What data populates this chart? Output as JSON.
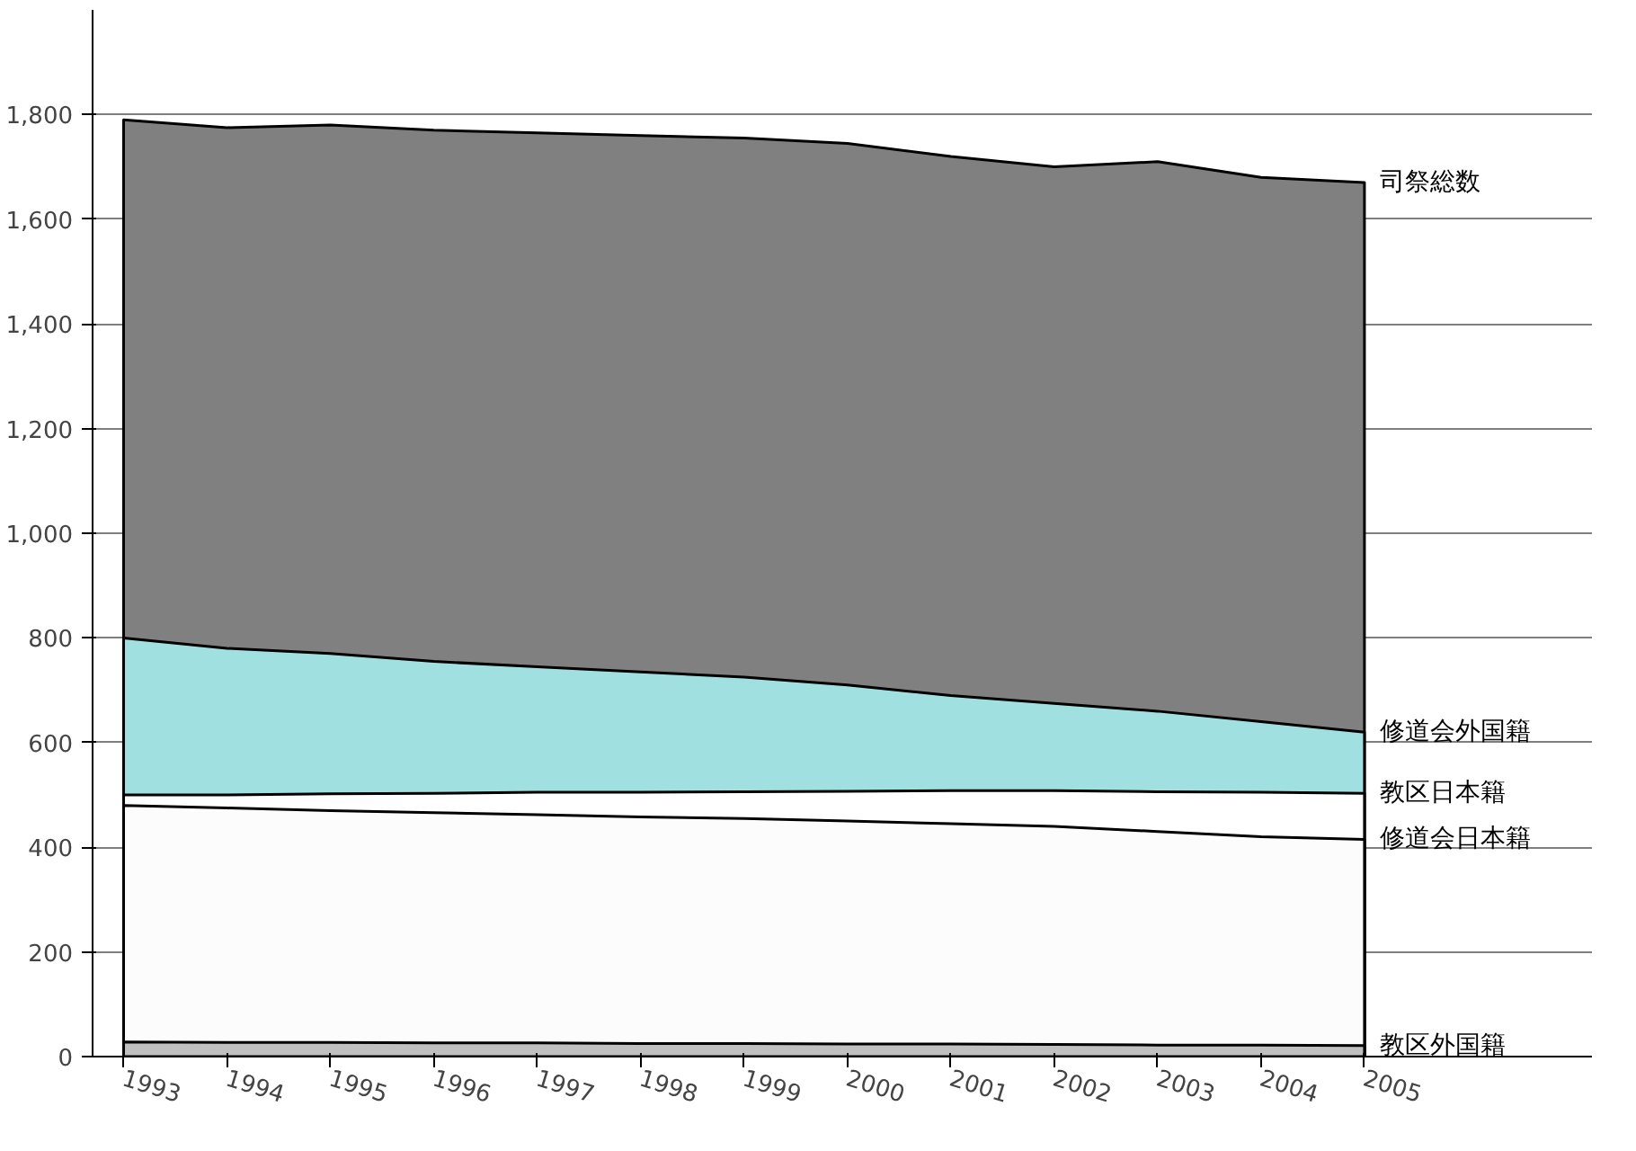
{
  "chart_data": {
    "type": "area",
    "categories": [
      "1993",
      "1994",
      "1995",
      "1996",
      "1997",
      "1998",
      "1999",
      "2000",
      "2001",
      "2002",
      "2003",
      "2004",
      "2005"
    ],
    "ylim": [
      0,
      2000
    ],
    "yticks": [
      0,
      200,
      400,
      600,
      800,
      {
        "value": 1000,
        "label": "1,000"
      },
      {
        "value": 1200,
        "label": "1,200"
      },
      {
        "value": 1400,
        "label": "1,400"
      },
      {
        "value": 1600,
        "label": "1,600"
      },
      {
        "value": 1800,
        "label": "1,800"
      }
    ],
    "grid": "y",
    "series": [
      {
        "name": "教区外国籍",
        "color": "#c0c0c0",
        "values": [
          28,
          27,
          27,
          26,
          26,
          25,
          25,
          24,
          24,
          23,
          22,
          22,
          21
        ]
      },
      {
        "name": "修道会日本籍",
        "color": "#fcfcfc",
        "values": [
          480,
          475,
          470,
          466,
          462,
          458,
          455,
          450,
          445,
          440,
          430,
          420,
          415
        ]
      },
      {
        "name": "教区日本籍",
        "color": "#ffffff",
        "values": [
          500,
          500,
          502,
          503,
          505,
          505,
          506,
          507,
          508,
          508,
          506,
          505,
          503
        ]
      },
      {
        "name": "修道会外国籍",
        "color": "#a0e0e0",
        "values": [
          800,
          780,
          770,
          755,
          745,
          735,
          725,
          710,
          690,
          675,
          660,
          640,
          620
        ]
      },
      {
        "name": "司祭総数",
        "color": "#808080",
        "values": [
          1790,
          1775,
          1780,
          1770,
          1765,
          1760,
          1755,
          1745,
          1720,
          1700,
          1710,
          1680,
          1670
        ]
      }
    ]
  }
}
